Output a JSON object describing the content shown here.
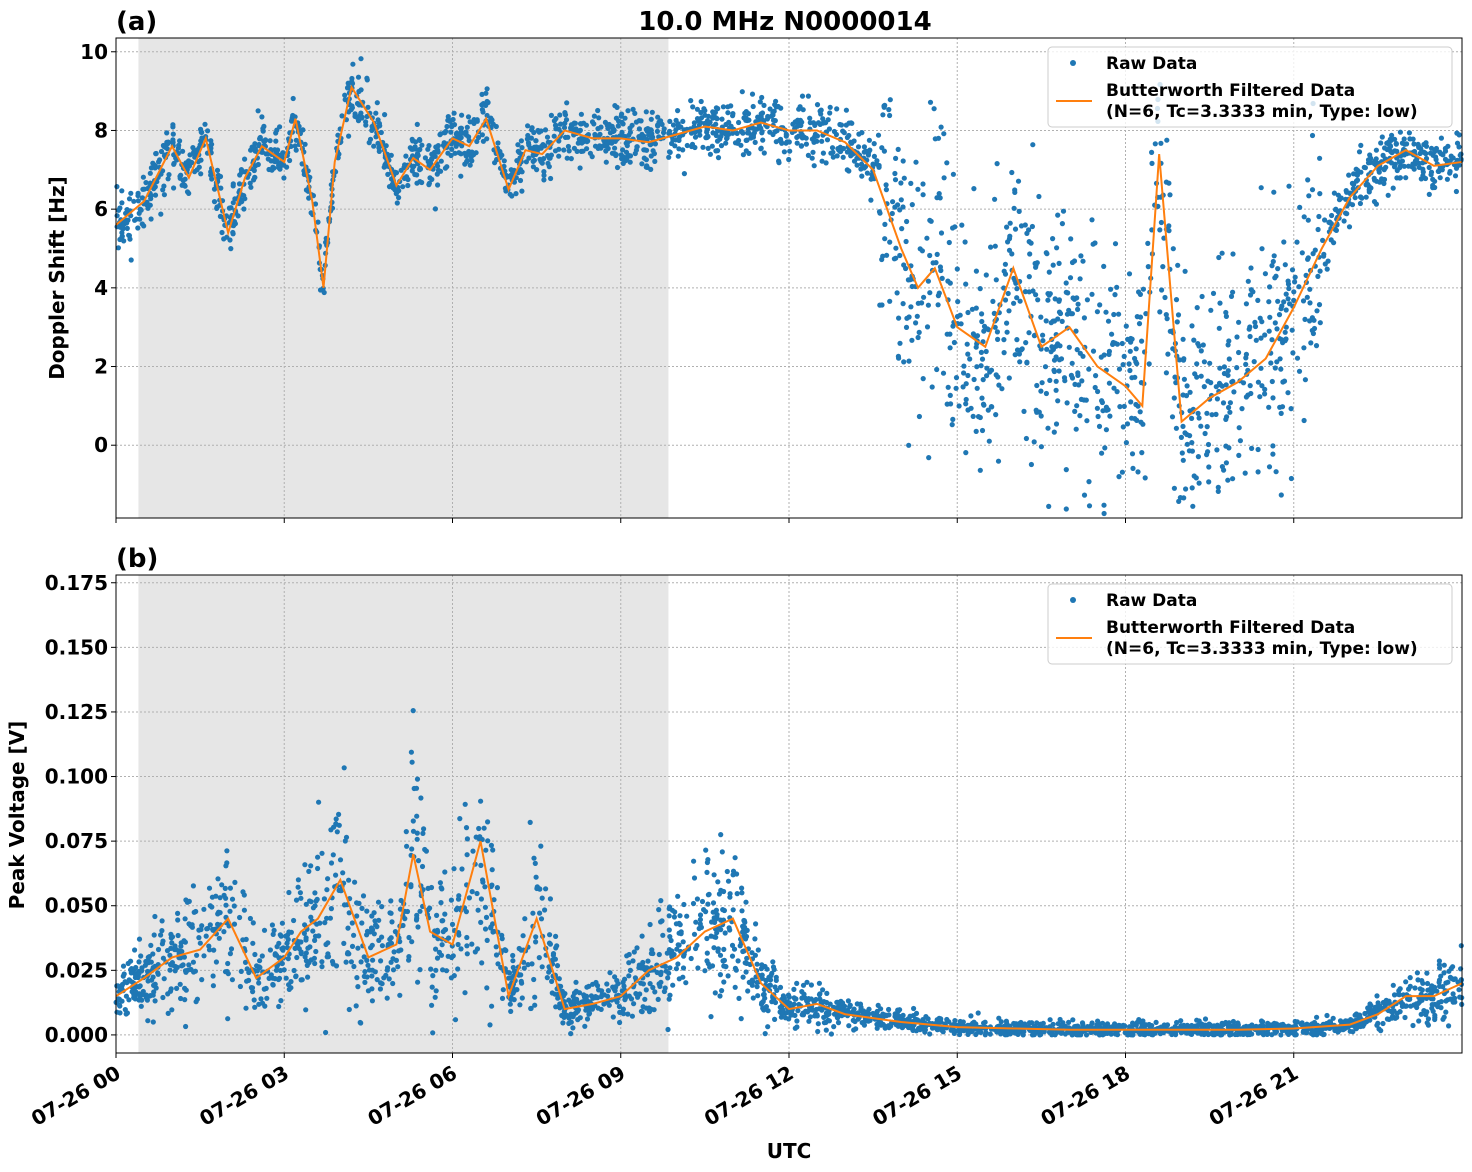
{
  "figure": {
    "title": "10.0 MHz N0000014",
    "xlabel": "UTC"
  },
  "colors": {
    "raw": "#1f77b4",
    "filtered": "#ff7f0e",
    "shade": "#e6e6e6",
    "grid": "#b0b0b0"
  },
  "legend": {
    "raw_label": "Raw Data",
    "filtered_line1": "Butterworth Filtered Data",
    "filtered_line2": "(N=6, Tc=3.3333 min, Type: low)"
  },
  "chart_data": [
    {
      "type": "scatter",
      "panel_label": "(a)",
      "ylabel": "Doppler Shift [Hz]",
      "xlim_hours": [
        0,
        24
      ],
      "ylim": [
        -1.85,
        10.35
      ],
      "yticks": [
        0,
        2,
        4,
        6,
        8,
        10
      ],
      "ytick_labels": [
        "0",
        "2",
        "4",
        "6",
        "8",
        "10"
      ],
      "xtick_hours": [
        0,
        3,
        6,
        9,
        12,
        15,
        18,
        21
      ],
      "shaded_region_hours": [
        0.4,
        9.85
      ],
      "grid": true,
      "legend_position": "upper right",
      "series": [
        {
          "name": "Raw Data",
          "style": "points"
        },
        {
          "name": "Butterworth Filtered Data (N=6, Tc=3.3333 min, Type: low)",
          "style": "line",
          "x_hours": [
            0,
            0.5,
            1,
            1.3,
            1.6,
            2,
            2.3,
            2.6,
            3,
            3.2,
            3.5,
            3.7,
            3.9,
            4.2,
            4.6,
            5,
            5.3,
            5.6,
            6,
            6.3,
            6.6,
            7,
            7.3,
            7.6,
            8,
            8.5,
            9,
            9.5,
            10,
            10.5,
            11,
            11.5,
            12,
            12.5,
            13,
            13.5,
            14,
            14.3,
            14.6,
            15,
            15.5,
            16,
            16.5,
            17,
            17.5,
            18,
            18.3,
            18.6,
            19,
            19.5,
            20,
            20.5,
            21,
            21.5,
            22,
            22.5,
            23,
            23.5,
            24
          ],
          "values": [
            5.6,
            6.2,
            7.6,
            6.8,
            7.8,
            5.4,
            6.8,
            7.6,
            7.2,
            8.3,
            6.2,
            4.0,
            7.2,
            9.1,
            8.2,
            6.6,
            7.3,
            7.0,
            7.8,
            7.6,
            8.3,
            6.5,
            7.5,
            7.4,
            8.0,
            7.8,
            7.8,
            7.7,
            7.9,
            8.1,
            8.0,
            8.2,
            8.0,
            8.0,
            7.7,
            7.0,
            5.0,
            4.0,
            4.5,
            3.0,
            2.5,
            4.5,
            2.5,
            3.0,
            2.0,
            1.5,
            1.0,
            7.4,
            0.6,
            1.2,
            1.6,
            2.2,
            3.5,
            5.0,
            6.3,
            7.1,
            7.5,
            7.1,
            7.2
          ]
        }
      ]
    },
    {
      "type": "scatter",
      "panel_label": "(b)",
      "ylabel": "Peak Voltage [V]",
      "xlim_hours": [
        0,
        24
      ],
      "ylim": [
        -0.007,
        0.178
      ],
      "yticks": [
        0,
        0.025,
        0.05,
        0.075,
        0.1,
        0.125,
        0.15,
        0.175
      ],
      "ytick_labels": [
        "0.000",
        "0.025",
        "0.050",
        "0.075",
        "0.100",
        "0.125",
        "0.150",
        "0.175"
      ],
      "xtick_hours": [
        0,
        3,
        6,
        9,
        12,
        15,
        18,
        21
      ],
      "xtick_labels": [
        "07-26 00",
        "07-26 03",
        "07-26 06",
        "07-26 09",
        "07-26 12",
        "07-26 15",
        "07-26 18",
        "07-26 21"
      ],
      "shaded_region_hours": [
        0.4,
        9.85
      ],
      "grid": true,
      "legend_position": "upper right",
      "series": [
        {
          "name": "Raw Data",
          "style": "points"
        },
        {
          "name": "Butterworth Filtered Data (N=6, Tc=3.3333 min, Type: low)",
          "style": "line",
          "x_hours": [
            0,
            0.5,
            1,
            1.5,
            2,
            2.5,
            3,
            3.3,
            3.6,
            4,
            4.5,
            5,
            5.3,
            5.6,
            6,
            6.5,
            7,
            7.5,
            8,
            8.5,
            9,
            9.5,
            10,
            10.5,
            11,
            11.5,
            12,
            12.5,
            13,
            14,
            15,
            16,
            17,
            18,
            19,
            20,
            21,
            22,
            22.5,
            23,
            23.5,
            24
          ],
          "values": [
            0.015,
            0.022,
            0.03,
            0.033,
            0.045,
            0.022,
            0.03,
            0.04,
            0.045,
            0.06,
            0.03,
            0.035,
            0.07,
            0.04,
            0.035,
            0.075,
            0.015,
            0.045,
            0.01,
            0.012,
            0.015,
            0.025,
            0.03,
            0.04,
            0.045,
            0.02,
            0.01,
            0.012,
            0.008,
            0.005,
            0.003,
            0.0025,
            0.002,
            0.002,
            0.002,
            0.002,
            0.0025,
            0.004,
            0.008,
            0.015,
            0.015,
            0.02
          ]
        }
      ]
    }
  ]
}
